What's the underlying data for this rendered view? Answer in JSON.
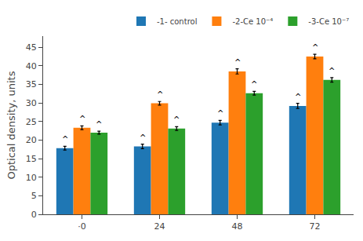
{
  "chart_data": {
    "type": "bar",
    "categories": [
      "·0",
      "24",
      "48",
      "72"
    ],
    "series": [
      {
        "name": "-1- control",
        "values": [
          17.8,
          18.3,
          24.7,
          29.2
        ],
        "errors": [
          0.5,
          0.6,
          0.6,
          0.7
        ],
        "annotations": [
          "^",
          "^",
          "^",
          "^"
        ]
      },
      {
        "name": "-2-Ce 10⁻⁴",
        "values": [
          23.3,
          29.9,
          38.5,
          42.5
        ],
        "errors": [
          0.5,
          0.5,
          0.7,
          0.6
        ],
        "annotations": [
          "^",
          "^",
          "^",
          "^"
        ]
      },
      {
        "name": "-3-Ce 10⁻⁷",
        "values": [
          22.0,
          23.1,
          32.6,
          36.2
        ],
        "errors": [
          0.4,
          0.5,
          0.5,
          0.6
        ],
        "annotations": [
          "^",
          "^",
          "^",
          "^"
        ]
      }
    ],
    "ylabel": "Optical density, units",
    "ylim": [
      0,
      48
    ],
    "yticks": [
      0,
      5,
      10,
      15,
      20,
      25,
      30,
      35,
      40,
      45
    ],
    "grid": false,
    "legend": "upper right"
  }
}
